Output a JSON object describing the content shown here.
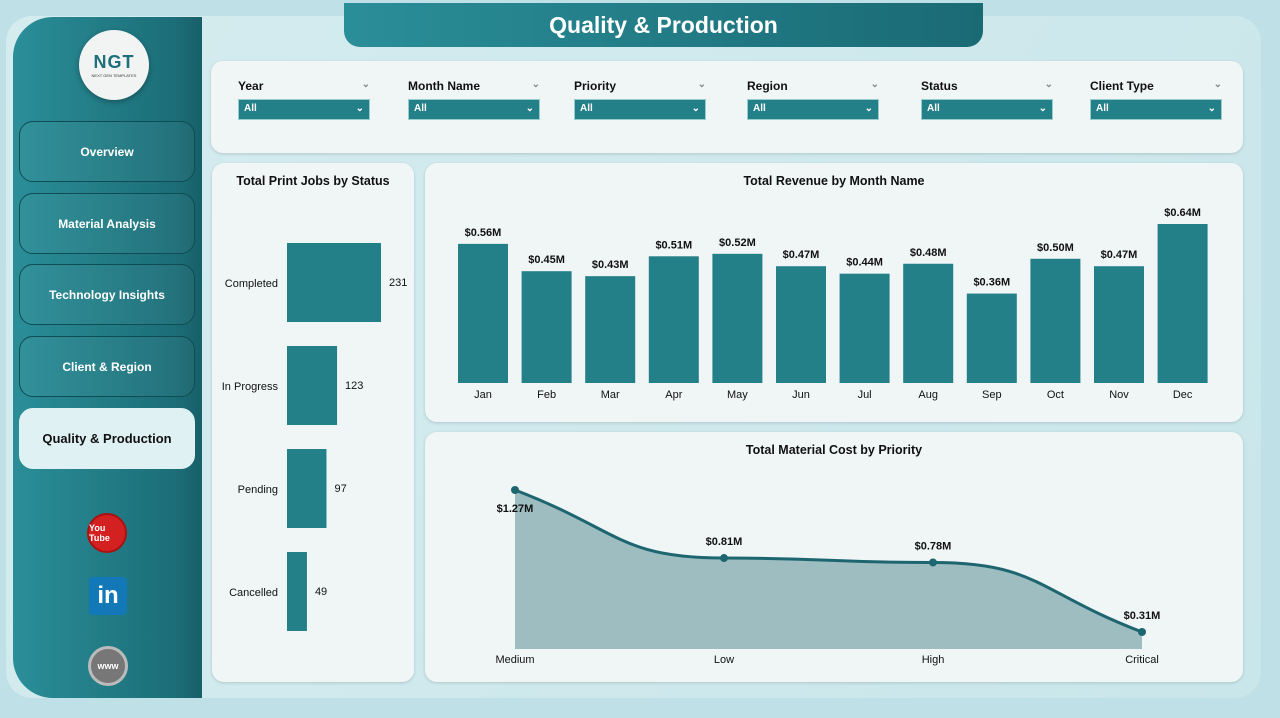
{
  "header": {
    "title": "Quality & Production"
  },
  "logo": {
    "text": "NGT",
    "subtitle": "NEXT GEN TEMPLATES"
  },
  "sidebar": {
    "items": [
      {
        "label": "Overview"
      },
      {
        "label": "Material Analysis"
      },
      {
        "label": "Technology Insights"
      },
      {
        "label": "Client & Region"
      },
      {
        "label": "Quality & Production",
        "active": true
      }
    ],
    "social": [
      {
        "icon": "youtube-icon",
        "label": "You Tube"
      },
      {
        "icon": "linkedin-icon",
        "label": "in"
      },
      {
        "icon": "globe-icon",
        "label": "www"
      }
    ]
  },
  "filters": [
    {
      "label": "Year",
      "value": "All"
    },
    {
      "label": "Month Name",
      "value": "All"
    },
    {
      "label": "Priority",
      "value": "All"
    },
    {
      "label": "Region",
      "value": "All"
    },
    {
      "label": "Status",
      "value": "All"
    },
    {
      "label": "Client Type",
      "value": "All"
    }
  ],
  "colors": {
    "accent": "#237f88",
    "area": "#9dbdc0",
    "line": "#1d6670"
  },
  "chart_data": [
    {
      "type": "bar",
      "orientation": "horizontal",
      "title": "Total Print Jobs by Status",
      "categories": [
        "Completed",
        "In Progress",
        "Pending",
        "Cancelled"
      ],
      "values": [
        231,
        123,
        97,
        49
      ],
      "data_labels": [
        "231",
        "123",
        "97",
        "49"
      ]
    },
    {
      "type": "bar",
      "title": "Total Revenue by Month Name",
      "categories": [
        "Jan",
        "Feb",
        "Mar",
        "Apr",
        "May",
        "Jun",
        "Jul",
        "Aug",
        "Sep",
        "Oct",
        "Nov",
        "Dec"
      ],
      "values": [
        0.56,
        0.45,
        0.43,
        0.51,
        0.52,
        0.47,
        0.44,
        0.48,
        0.36,
        0.5,
        0.47,
        0.64
      ],
      "data_labels": [
        "$0.56M",
        "$0.45M",
        "$0.43M",
        "$0.51M",
        "$0.52M",
        "$0.47M",
        "$0.44M",
        "$0.48M",
        "$0.36M",
        "$0.50M",
        "$0.47M",
        "$0.64M"
      ],
      "unit": "$M",
      "ylim": [
        0,
        0.64
      ]
    },
    {
      "type": "area",
      "title": "Total Material Cost by Priority",
      "categories": [
        "Medium",
        "Low",
        "High",
        "Critical"
      ],
      "values": [
        1.27,
        0.81,
        0.78,
        0.31
      ],
      "data_labels": [
        "$1.27M",
        "$0.81M",
        "$0.78M",
        "$0.31M"
      ],
      "unit": "$M",
      "ylim": [
        0.2,
        1.27
      ]
    }
  ]
}
